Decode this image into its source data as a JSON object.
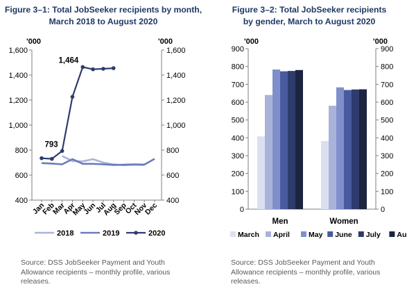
{
  "figure1": {
    "title_line1": "Figure 3–1: Total JobSeeker recipients by month,",
    "title_line2": "March 2018 to August 2020",
    "source": "Source: DSS JobSeeker Payment and Youth Allowance recipients – monthly profile, various releases."
  },
  "figure2": {
    "title_line1": "Figure 3–2: Total JobSeeker recipients",
    "title_line2": "by gender, March to August 2020",
    "source": "Source: DSS JobSeeker Payment and Youth Allowance recipients – monthly profile, various releases."
  },
  "chart_data": [
    {
      "type": "line",
      "unit_label_left": "'000",
      "unit_label_right": "'000",
      "categories": [
        "Jan",
        "Feb",
        "Mar",
        "Apr",
        "May",
        "Jun",
        "Jul",
        "Aug",
        "Sep",
        "Oct",
        "Nov",
        "Dec"
      ],
      "ylim": [
        400,
        1600
      ],
      "yticks": [
        400,
        600,
        800,
        1000,
        1200,
        1400,
        1600
      ],
      "ytick_labels": [
        "400",
        "600",
        "800",
        "1,000",
        "1,200",
        "1,400",
        "1,600"
      ],
      "series": [
        {
          "name": "2018",
          "color": "#a9b3d9",
          "values": [
            null,
            null,
            752,
            712,
            710,
            727,
            700,
            686,
            679,
            682,
            681,
            null
          ]
        },
        {
          "name": "2019",
          "color": "#6a7bbd",
          "values": [
            696,
            692,
            686,
            728,
            690,
            690,
            686,
            681,
            683,
            686,
            684,
            730
          ]
        },
        {
          "name": "2020",
          "color": "#2e3b6e",
          "values": [
            735,
            730,
            793,
            1226,
            1464,
            1446,
            1450,
            1455,
            null,
            null,
            null,
            null
          ]
        }
      ],
      "annotations": [
        {
          "text": "1,464",
          "series": "2020",
          "category": "May"
        },
        {
          "text": "793",
          "series": "2020",
          "category": "Mar"
        }
      ],
      "legend_position": "bottom",
      "grid": false
    },
    {
      "type": "bar",
      "unit_label_left": "'000",
      "unit_label_right": "'000",
      "categories": [
        "Men",
        "Women"
      ],
      "ylim": [
        0,
        900
      ],
      "yticks": [
        0,
        100,
        200,
        300,
        400,
        500,
        600,
        700,
        800,
        900
      ],
      "series": [
        {
          "name": "March",
          "color": "#dcdff2",
          "values": [
            408,
            382
          ]
        },
        {
          "name": "April",
          "color": "#a9b3d9",
          "values": [
            640,
            580
          ]
        },
        {
          "name": "May",
          "color": "#7f8fcb",
          "values": [
            783,
            683
          ]
        },
        {
          "name": "June",
          "color": "#4a5a9e",
          "values": [
            773,
            668
          ]
        },
        {
          "name": "July",
          "color": "#2e3b6e",
          "values": [
            775,
            671
          ]
        },
        {
          "name": "August",
          "color": "#1c2440",
          "values": [
            780,
            672
          ]
        }
      ],
      "legend_position": "bottom",
      "grid": false
    }
  ]
}
